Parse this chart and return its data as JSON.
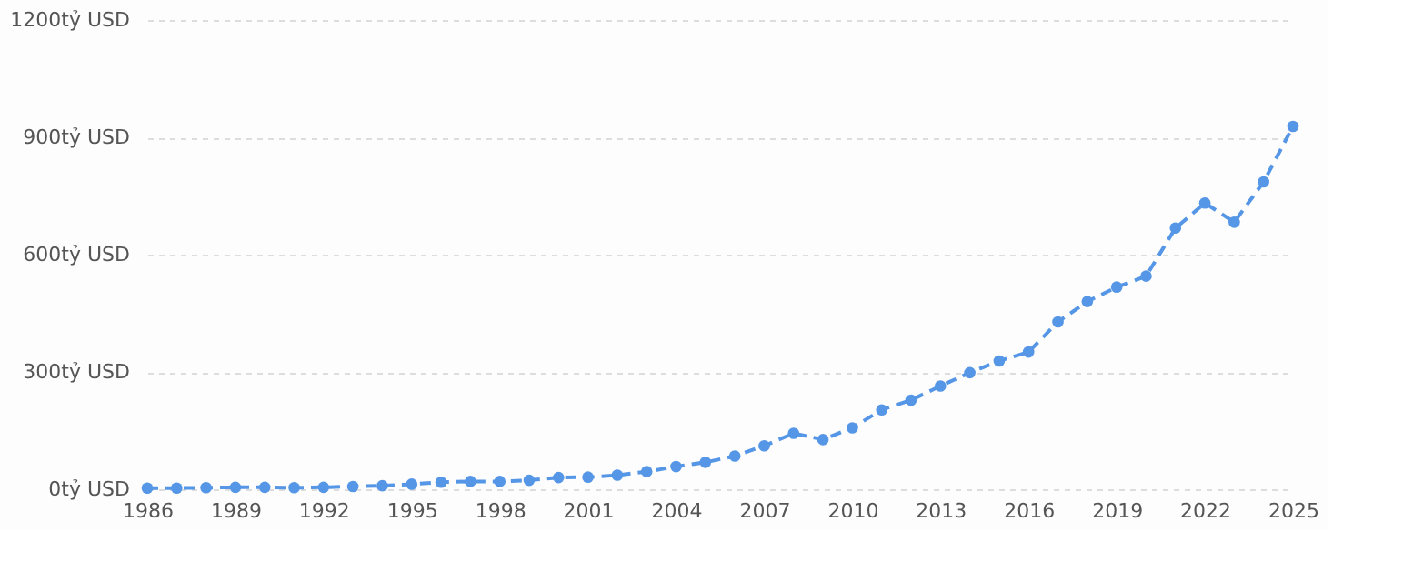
{
  "chart_data": {
    "type": "line",
    "x": [
      1986,
      1987,
      1988,
      1989,
      1990,
      1991,
      1992,
      1993,
      1994,
      1995,
      1996,
      1997,
      1998,
      1999,
      2000,
      2001,
      2002,
      2003,
      2004,
      2005,
      2006,
      2007,
      2008,
      2009,
      2010,
      2011,
      2012,
      2013,
      2014,
      2015,
      2016,
      2017,
      2018,
      2019,
      2020,
      2021,
      2022,
      2023,
      2024,
      2025
    ],
    "series": [
      {
        "color": "#5596e6",
        "values": [
          3,
          3,
          4,
          5,
          5,
          4,
          5,
          7,
          9,
          13,
          18,
          20,
          20,
          23,
          30,
          31,
          36,
          45,
          58,
          69,
          85,
          111,
          143,
          127,
          157,
          203,
          228,
          264,
          298,
          328,
          351,
          428,
          480,
          517,
          545,
          668,
          732,
          683,
          786,
          928
        ]
      }
    ],
    "xlim": [
      1986,
      2025
    ],
    "xticks": [
      1986,
      1989,
      1992,
      1995,
      1998,
      2001,
      2004,
      2007,
      2010,
      2013,
      2016,
      2019,
      2022,
      2025
    ],
    "ylim": [
      0,
      1200
    ],
    "yticks": [
      {
        "value": 0,
        "label": "0tỷ USD"
      },
      {
        "value": 300,
        "label": "300tỷ USD"
      },
      {
        "value": 600,
        "label": "600tỷ USD"
      },
      {
        "value": 900,
        "label": "900tỷ USD"
      },
      {
        "value": 1200,
        "label": "1200tỷ USD"
      }
    ],
    "grid": "y",
    "marker": "circle",
    "line_style": "dashed"
  }
}
